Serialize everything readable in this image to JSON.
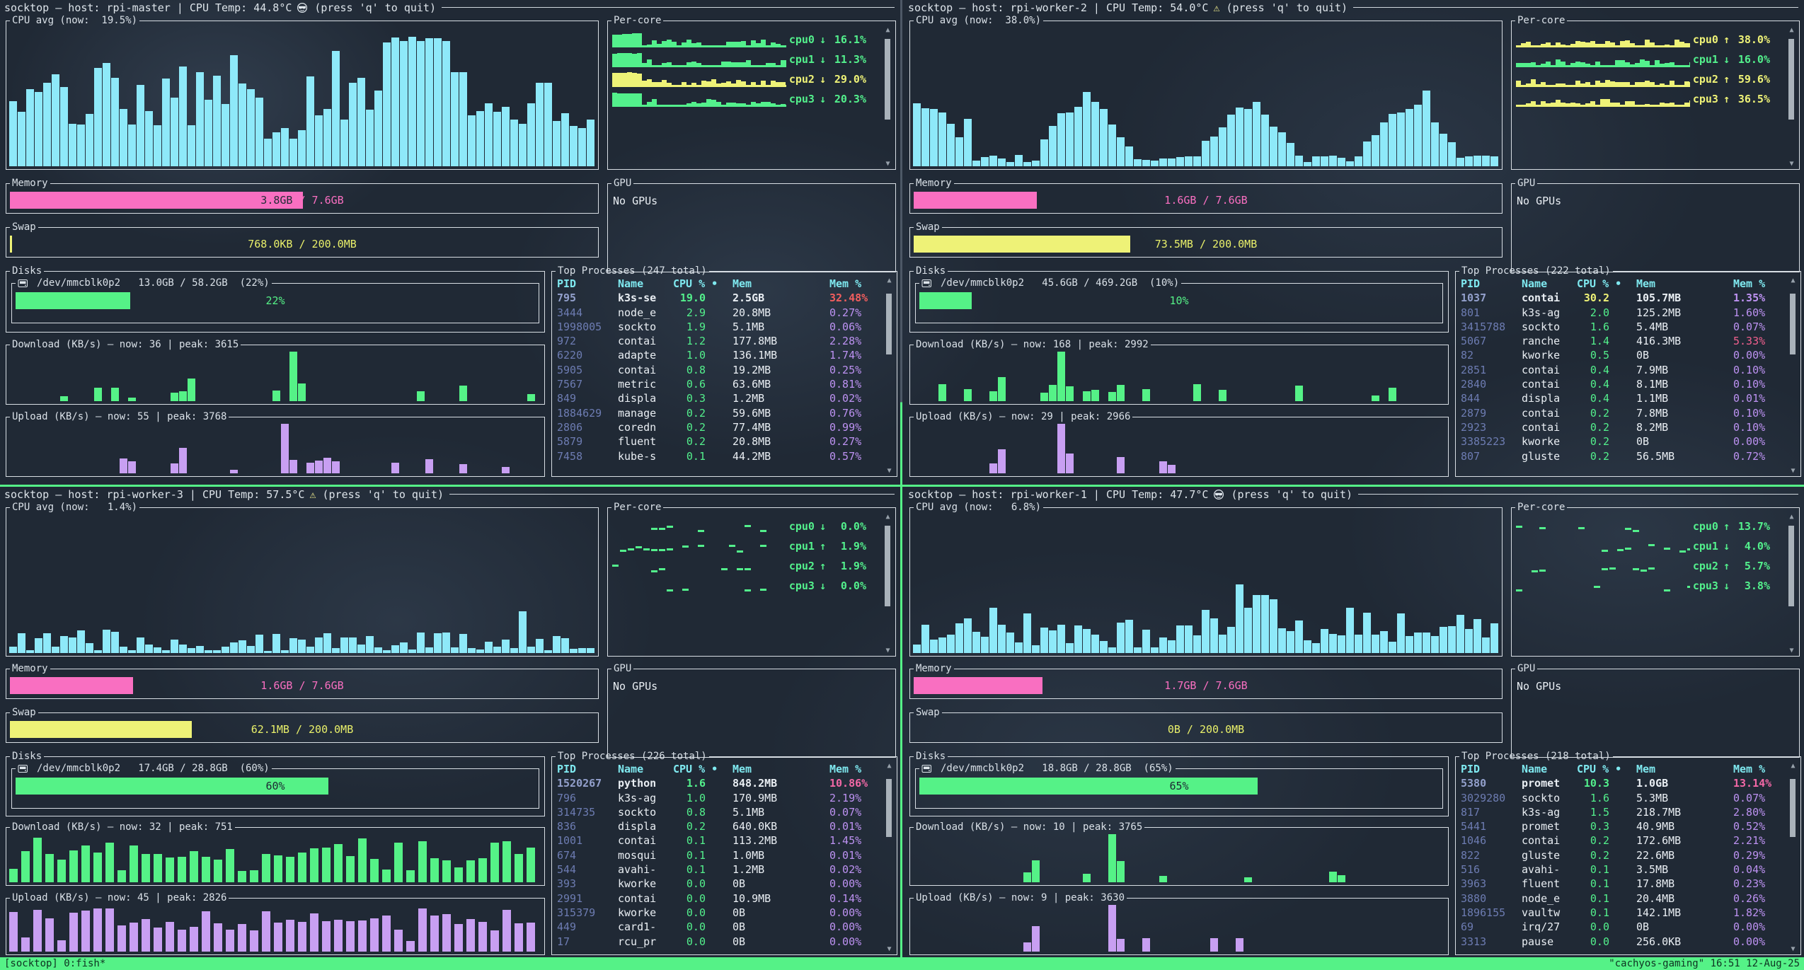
{
  "labels": {
    "quit_hint": "(press 'q' to quit)",
    "per_core": "Per-core",
    "memory": "Memory",
    "swap": "Swap",
    "gpu": "GPU",
    "no_gpus": "No GPUs",
    "disks": "Disks",
    "sep": " / ",
    "col_pid": "PID",
    "col_name": "Name",
    "col_cpu": "CPU % •",
    "col_mem": "Mem",
    "col_memp": "Mem %"
  },
  "theme": {
    "accent_green": "#55f287",
    "accent_cyan": "#8ee9f9",
    "accent_yellow": "#eef277",
    "accent_pink": "#f96fc1",
    "accent_purple": "#c89ff2",
    "alert_red": "#f25e5e",
    "border": "#d8dee4",
    "background": "#202935",
    "status_bar": "#55f287"
  },
  "status_bar": {
    "left": "[socktop] 0:fish*",
    "right": "\"cachyos-gaming\" 16:51 12-Aug-25"
  },
  "panes": [
    {
      "title": "socktop — host: rpi-master | CPU Temp: 44.8°C",
      "title_icon": "cool-face",
      "cpu_label": "CPU avg (now:  19.5%)",
      "per_core": [
        {
          "name": "cpu0",
          "arrow": "↓",
          "value": "16.1%",
          "color": "green"
        },
        {
          "name": "cpu1",
          "arrow": "↓",
          "value": "11.3%",
          "color": "green"
        },
        {
          "name": "cpu2",
          "arrow": "↓",
          "value": "29.0%",
          "color": "yellow"
        },
        {
          "name": "cpu3",
          "arrow": "↓",
          "value": "20.3%",
          "color": "green"
        }
      ],
      "memory": {
        "used": "3.8GB",
        "total": "7.6GB",
        "pct": 50,
        "used_on_bar": true
      },
      "swap": {
        "used": "768.0KB",
        "total": "200.0MB",
        "pct": 0.4
      },
      "disk": {
        "text": "/dev/mmcblk0p2   13.0GB / 58.2GB  (22%)",
        "pct": 22,
        "pct_label": "22%"
      },
      "download": {
        "label": "Download (KB/s) — now: 36 | peak: 3615"
      },
      "upload": {
        "label": "Upload (KB/s) — now: 55 | peak: 3768"
      },
      "processes": {
        "title": "Top Processes (247 total)",
        "rows": [
          {
            "pid": "795",
            "name": "k3s-se",
            "cpu": "19.0",
            "mem": "2.5GB",
            "memp": "32.48%",
            "bold": true,
            "memp_color": "red"
          },
          {
            "pid": "3444",
            "name": "node_e",
            "cpu": "2.9",
            "mem": "20.8MB",
            "memp": "0.27%"
          },
          {
            "pid": "1998005",
            "name": "sockto",
            "cpu": "1.9",
            "mem": "5.1MB",
            "memp": "0.06%"
          },
          {
            "pid": "972",
            "name": "contai",
            "cpu": "1.2",
            "mem": "177.8MB",
            "memp": "2.28%"
          },
          {
            "pid": "6220",
            "name": "adapte",
            "cpu": "1.0",
            "mem": "136.1MB",
            "memp": "1.74%"
          },
          {
            "pid": "5905",
            "name": "contai",
            "cpu": "0.8",
            "mem": "19.2MB",
            "memp": "0.25%"
          },
          {
            "pid": "7567",
            "name": "metric",
            "cpu": "0.6",
            "mem": "63.6MB",
            "memp": "0.81%"
          },
          {
            "pid": "849",
            "name": "displa",
            "cpu": "0.3",
            "mem": "1.2MB",
            "memp": "0.02%"
          },
          {
            "pid": "1884629",
            "name": "manage",
            "cpu": "0.2",
            "mem": "59.6MB",
            "memp": "0.76%"
          },
          {
            "pid": "2806",
            "name": "coredn",
            "cpu": "0.2",
            "mem": "77.4MB",
            "memp": "0.99%"
          },
          {
            "pid": "5879",
            "name": "fluent",
            "cpu": "0.2",
            "mem": "20.8MB",
            "memp": "0.27%"
          },
          {
            "pid": "7458",
            "name": "kube-s",
            "cpu": "0.1",
            "mem": "44.2MB",
            "memp": "0.57%"
          }
        ]
      },
      "charts": {
        "cpu": {
          "pattern": "heavy",
          "seed": 11
        },
        "download": {
          "pattern": "spikes",
          "seed": 21,
          "density": 0.12,
          "peak": 0.54
        },
        "upload": {
          "pattern": "spikes",
          "seed": 29,
          "density": 0.14,
          "peak": 0.52
        },
        "per_core": {
          "style": "fill",
          "lead": true,
          "seed": 5
        }
      }
    },
    {
      "title": "socktop — host: rpi-worker-2 | CPU Temp: 54.0°C",
      "title_icon": "warning",
      "cpu_label": "CPU avg (now:  38.0%)",
      "per_core": [
        {
          "name": "cpu0",
          "arrow": "↑",
          "value": "38.0%",
          "color": "yellow"
        },
        {
          "name": "cpu1",
          "arrow": "↓",
          "value": "16.0%",
          "color": "green"
        },
        {
          "name": "cpu2",
          "arrow": "↑",
          "value": "59.6%",
          "color": "yellow"
        },
        {
          "name": "cpu3",
          "arrow": "↑",
          "value": "36.5%",
          "color": "yellow"
        }
      ],
      "memory": {
        "used": "1.6GB",
        "total": "7.6GB",
        "pct": 21
      },
      "swap": {
        "used": "73.5MB",
        "total": "200.0MB",
        "pct": 37
      },
      "disk": {
        "text": "/dev/mmcblk0p2   45.6GB / 469.2GB  (10%)",
        "pct": 10,
        "pct_label": "10%"
      },
      "download": {
        "label": "Download (KB/s) — now: 168 | peak: 2992"
      },
      "upload": {
        "label": "Upload (KB/s) — now: 29 | peak: 2966"
      },
      "processes": {
        "title": "Top Processes (222 total)",
        "rows": [
          {
            "pid": "1037",
            "name": "contai",
            "cpu": "30.2",
            "mem": "105.7MB",
            "memp": "1.35%",
            "bold": true,
            "cpu_color": "yellow"
          },
          {
            "pid": "801",
            "name": "k3s-ag",
            "cpu": "2.0",
            "mem": "125.2MB",
            "memp": "1.60%"
          },
          {
            "pid": "3415788",
            "name": "sockto",
            "cpu": "1.6",
            "mem": "5.4MB",
            "memp": "0.07%"
          },
          {
            "pid": "5067",
            "name": "ranche",
            "cpu": "1.4",
            "mem": "416.3MB",
            "memp": "5.33%",
            "memp_color": "pinkred"
          },
          {
            "pid": "82",
            "name": "kworke",
            "cpu": "0.5",
            "mem": "0B",
            "memp": "0.00%"
          },
          {
            "pid": "2851",
            "name": "contai",
            "cpu": "0.4",
            "mem": "7.9MB",
            "memp": "0.10%"
          },
          {
            "pid": "2840",
            "name": "contai",
            "cpu": "0.4",
            "mem": "8.1MB",
            "memp": "0.10%"
          },
          {
            "pid": "844",
            "name": "displa",
            "cpu": "0.4",
            "mem": "1.1MB",
            "memp": "0.01%"
          },
          {
            "pid": "2879",
            "name": "contai",
            "cpu": "0.2",
            "mem": "7.8MB",
            "memp": "0.10%"
          },
          {
            "pid": "2923",
            "name": "contai",
            "cpu": "0.2",
            "mem": "8.2MB",
            "memp": "0.10%"
          },
          {
            "pid": "3385223",
            "name": "kworke",
            "cpu": "0.2",
            "mem": "0B",
            "memp": "0.00%"
          },
          {
            "pid": "807",
            "name": "gluste",
            "cpu": "0.2",
            "mem": "56.5MB",
            "memp": "0.72%"
          }
        ]
      },
      "charts": {
        "cpu": {
          "pattern": "waves",
          "seed": 33
        },
        "download": {
          "pattern": "spikes",
          "seed": 47,
          "density": 0.16,
          "peak": 0.27
        },
        "upload": {
          "pattern": "spikes",
          "seed": 53,
          "density": 0.12,
          "peak": 0.27
        },
        "per_core": {
          "style": "fill",
          "lead": false,
          "seed": 7
        }
      }
    },
    {
      "title": "socktop — host: rpi-worker-3 | CPU Temp: 57.5°C",
      "title_icon": "warning",
      "cpu_label": "CPU avg (now:   1.4%)",
      "per_core": [
        {
          "name": "cpu0",
          "arrow": "↓",
          "value": " 0.0%",
          "color": "green"
        },
        {
          "name": "cpu1",
          "arrow": "↑",
          "value": " 1.9%",
          "color": "green"
        },
        {
          "name": "cpu2",
          "arrow": "↑",
          "value": " 1.9%",
          "color": "green"
        },
        {
          "name": "cpu3",
          "arrow": "↓",
          "value": " 0.0%",
          "color": "green"
        }
      ],
      "memory": {
        "used": "1.6GB",
        "total": "7.6GB",
        "pct": 21
      },
      "swap": {
        "used": "62.1MB",
        "total": "200.0MB",
        "pct": 31
      },
      "disk": {
        "text": "/dev/mmcblk0p2   17.4GB / 28.8GB  (60%)",
        "pct": 60,
        "pct_label": "60%"
      },
      "download": {
        "label": "Download (KB/s) — now: 32 | peak: 751"
      },
      "upload": {
        "label": "Upload (KB/s) — now: 45 | peak: 2826"
      },
      "processes": {
        "title": "Top Processes (226 total)",
        "rows": [
          {
            "pid": "1520267",
            "name": "python",
            "cpu": "1.6",
            "mem": "848.2MB",
            "memp": "10.86%",
            "bold": true,
            "memp_color": "pink"
          },
          {
            "pid": "796",
            "name": "k3s-ag",
            "cpu": "1.0",
            "mem": "170.9MB",
            "memp": "2.19%"
          },
          {
            "pid": "314735",
            "name": "sockto",
            "cpu": "0.8",
            "mem": "5.1MB",
            "memp": "0.07%"
          },
          {
            "pid": "836",
            "name": "displa",
            "cpu": "0.2",
            "mem": "640.0KB",
            "memp": "0.01%"
          },
          {
            "pid": "1001",
            "name": "contai",
            "cpu": "0.1",
            "mem": "113.2MB",
            "memp": "1.45%"
          },
          {
            "pid": "674",
            "name": "mosqui",
            "cpu": "0.1",
            "mem": "1.0MB",
            "memp": "0.01%"
          },
          {
            "pid": "544",
            "name": "avahi-",
            "cpu": "0.1",
            "mem": "1.2MB",
            "memp": "0.02%"
          },
          {
            "pid": "393",
            "name": "kworke",
            "cpu": "0.0",
            "mem": "0B",
            "memp": "0.00%"
          },
          {
            "pid": "2991",
            "name": "contai",
            "cpu": "0.0",
            "mem": "10.9MB",
            "memp": "0.14%"
          },
          {
            "pid": "315379",
            "name": "kworke",
            "cpu": "0.0",
            "mem": "0B",
            "memp": "0.00%"
          },
          {
            "pid": "449",
            "name": "card1-",
            "cpu": "0.0",
            "mem": "0B",
            "memp": "0.00%"
          },
          {
            "pid": "17",
            "name": "rcu_pr",
            "cpu": "0.0",
            "mem": "0B",
            "memp": "0.00%"
          }
        ]
      },
      "charts": {
        "cpu": {
          "pattern": "idle",
          "seed": 61
        },
        "download": {
          "pattern": "comb",
          "seed": 67
        },
        "upload": {
          "pattern": "comb",
          "seed": 71
        },
        "per_core": {
          "style": "dash",
          "seed": 9
        }
      }
    },
    {
      "title": "socktop — host: rpi-worker-1 | CPU Temp: 47.7°C",
      "title_icon": "cool-face",
      "cpu_label": "CPU avg (now:   6.8%)",
      "per_core": [
        {
          "name": "cpu0",
          "arrow": "↑",
          "value": "13.7%",
          "color": "green"
        },
        {
          "name": "cpu1",
          "arrow": "↓",
          "value": " 4.0%",
          "color": "green"
        },
        {
          "name": "cpu2",
          "arrow": "↑",
          "value": " 5.7%",
          "color": "green"
        },
        {
          "name": "cpu3",
          "arrow": "↓",
          "value": " 3.8%",
          "color": "green"
        }
      ],
      "memory": {
        "used": "1.7GB",
        "total": "7.6GB",
        "pct": 22
      },
      "swap": {
        "used": "0B",
        "total": "200.0MB",
        "pct": 0
      },
      "disk": {
        "text": "/dev/mmcblk0p2   18.8GB / 28.8GB  (65%)",
        "pct": 65,
        "pct_label": "65%"
      },
      "download": {
        "label": "Download (KB/s) — now: 10 | peak: 3765"
      },
      "upload": {
        "label": "Upload (KB/s) — now: 9 | peak: 3630"
      },
      "processes": {
        "title": "Top Processes (218 total)",
        "rows": [
          {
            "pid": "5380",
            "name": "promet",
            "cpu": "10.3",
            "mem": "1.0GB",
            "memp": "13.14%",
            "bold": true,
            "memp_color": "pink"
          },
          {
            "pid": "3029280",
            "name": "sockto",
            "cpu": "1.6",
            "mem": "5.3MB",
            "memp": "0.07%"
          },
          {
            "pid": "817",
            "name": "k3s-ag",
            "cpu": "1.5",
            "mem": "218.7MB",
            "memp": "2.80%"
          },
          {
            "pid": "5441",
            "name": "promet",
            "cpu": "0.3",
            "mem": "40.9MB",
            "memp": "0.52%"
          },
          {
            "pid": "1046",
            "name": "contai",
            "cpu": "0.2",
            "mem": "172.6MB",
            "memp": "2.21%"
          },
          {
            "pid": "822",
            "name": "gluste",
            "cpu": "0.2",
            "mem": "22.6MB",
            "memp": "0.29%"
          },
          {
            "pid": "516",
            "name": "avahi-",
            "cpu": "0.1",
            "mem": "3.5MB",
            "memp": "0.04%"
          },
          {
            "pid": "3963",
            "name": "fluent",
            "cpu": "0.1",
            "mem": "17.8MB",
            "memp": "0.23%"
          },
          {
            "pid": "3880",
            "name": "node_e",
            "cpu": "0.1",
            "mem": "20.4MB",
            "memp": "0.26%"
          },
          {
            "pid": "1896155",
            "name": "vaultw",
            "cpu": "0.1",
            "mem": "142.1MB",
            "memp": "1.82%"
          },
          {
            "pid": "69",
            "name": "irq/27",
            "cpu": "0.0",
            "mem": "0B",
            "memp": "0.00%"
          },
          {
            "pid": "3313",
            "name": "pause",
            "cpu": "0.0",
            "mem": "256.0KB",
            "memp": "0.00%"
          }
        ]
      },
      "charts": {
        "cpu": {
          "pattern": "light",
          "seed": 83
        },
        "download": {
          "pattern": "spikes",
          "seed": 89,
          "density": 0.05,
          "peak": 0.37
        },
        "upload": {
          "pattern": "spikes",
          "seed": 97,
          "density": 0.06,
          "peak": 0.37
        },
        "per_core": {
          "style": "dash",
          "seed": 13
        }
      }
    }
  ]
}
